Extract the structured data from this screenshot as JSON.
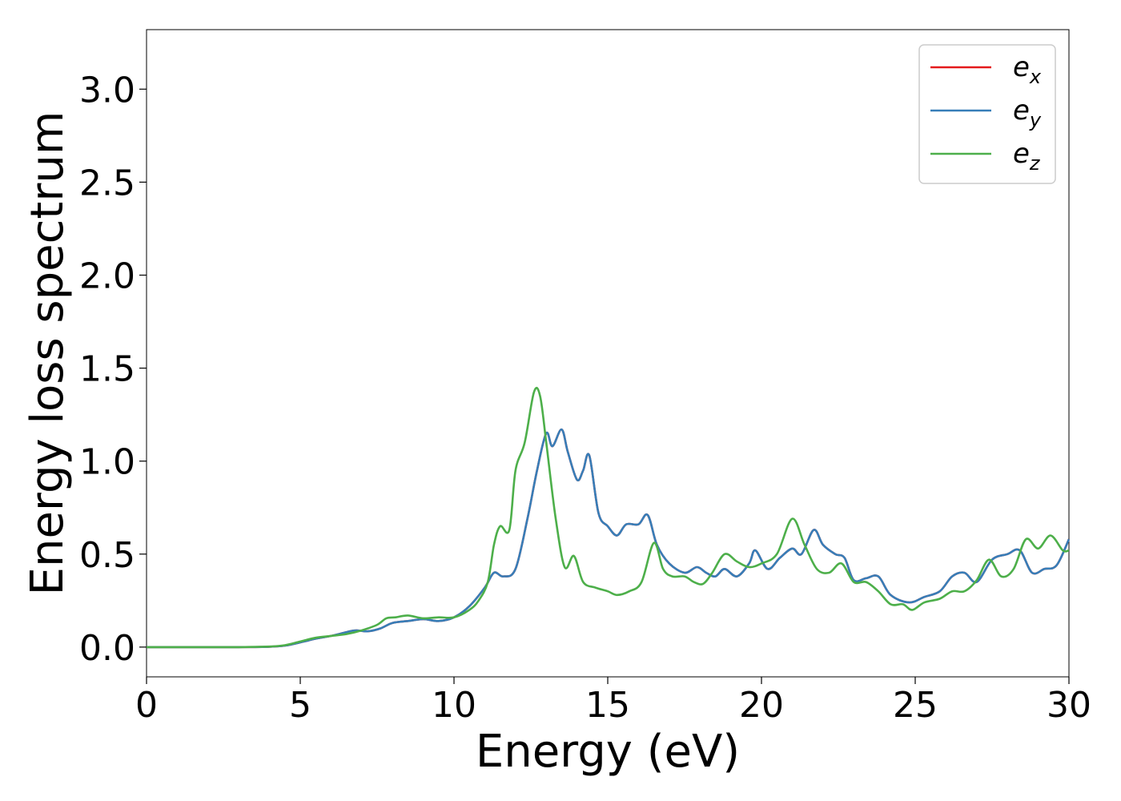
{
  "chart_data": {
    "type": "line",
    "xlabel": "Energy (eV)",
    "ylabel": "Energy loss spectrum",
    "xlim": [
      0,
      30
    ],
    "ylim": [
      -0.16,
      3.32
    ],
    "xticks": [
      0,
      5,
      10,
      15,
      20,
      25,
      30
    ],
    "xtick_labels": [
      "0",
      "5",
      "10",
      "15",
      "20",
      "25",
      "30"
    ],
    "yticks": [
      0.0,
      0.5,
      1.0,
      1.5,
      2.0,
      2.5,
      3.0
    ],
    "ytick_labels": [
      "0.0",
      "0.5",
      "1.0",
      "1.5",
      "2.0",
      "2.5",
      "3.0"
    ],
    "grid": false,
    "legend_position": "top-right",
    "series": [
      {
        "name": "ex",
        "legend_main": "e",
        "legend_sub": "x",
        "color": "#e41a1c",
        "x": [
          0,
          1,
          2,
          3,
          4,
          4.5,
          5,
          5.5,
          6,
          6.5,
          6.8,
          7.2,
          7.6,
          8,
          8.5,
          9,
          9.5,
          10,
          10.5,
          11,
          11.3,
          11.6,
          12,
          12.4,
          12.7,
          13.0,
          13.2,
          13.5,
          13.7,
          14.0,
          14.2,
          14.4,
          14.7,
          15.0,
          15.3,
          15.6,
          16.0,
          16.3,
          16.6,
          17.0,
          17.5,
          17.9,
          18.2,
          18.5,
          18.8,
          19.2,
          19.6,
          19.8,
          20.2,
          20.6,
          21.0,
          21.3,
          21.7,
          22.0,
          22.4,
          22.7,
          23.0,
          23.4,
          23.8,
          24.2,
          24.8,
          25.3,
          25.8,
          26.2,
          26.6,
          27.0,
          27.5,
          28.0,
          28.4,
          28.8,
          29.2,
          29.6,
          30.0
        ],
        "y": [
          0,
          0,
          0,
          0,
          0.002,
          0.008,
          0.025,
          0.045,
          0.06,
          0.08,
          0.09,
          0.085,
          0.1,
          0.13,
          0.14,
          0.15,
          0.14,
          0.16,
          0.22,
          0.32,
          0.4,
          0.38,
          0.42,
          0.7,
          0.95,
          1.15,
          1.08,
          1.17,
          1.05,
          0.9,
          0.95,
          1.03,
          0.72,
          0.65,
          0.6,
          0.66,
          0.66,
          0.71,
          0.55,
          0.45,
          0.4,
          0.43,
          0.4,
          0.38,
          0.42,
          0.38,
          0.45,
          0.52,
          0.42,
          0.48,
          0.53,
          0.5,
          0.63,
          0.55,
          0.5,
          0.48,
          0.36,
          0.37,
          0.38,
          0.28,
          0.24,
          0.27,
          0.3,
          0.38,
          0.4,
          0.35,
          0.47,
          0.5,
          0.52,
          0.4,
          0.42,
          0.44,
          0.58
        ]
      },
      {
        "name": "ey",
        "legend_main": "e",
        "legend_sub": "y",
        "color": "#377eb8",
        "x": [
          0,
          1,
          2,
          3,
          4,
          4.5,
          5,
          5.5,
          6,
          6.5,
          6.8,
          7.2,
          7.6,
          8,
          8.5,
          9,
          9.5,
          10,
          10.5,
          11,
          11.3,
          11.6,
          12,
          12.4,
          12.7,
          13.0,
          13.2,
          13.5,
          13.7,
          14.0,
          14.2,
          14.4,
          14.7,
          15.0,
          15.3,
          15.6,
          16.0,
          16.3,
          16.6,
          17.0,
          17.5,
          17.9,
          18.2,
          18.5,
          18.8,
          19.2,
          19.6,
          19.8,
          20.2,
          20.6,
          21.0,
          21.3,
          21.7,
          22.0,
          22.4,
          22.7,
          23.0,
          23.4,
          23.8,
          24.2,
          24.8,
          25.3,
          25.8,
          26.2,
          26.6,
          27.0,
          27.5,
          28.0,
          28.4,
          28.8,
          29.2,
          29.6,
          30.0
        ],
        "y": [
          0,
          0,
          0,
          0,
          0.002,
          0.008,
          0.025,
          0.045,
          0.06,
          0.08,
          0.09,
          0.085,
          0.1,
          0.13,
          0.14,
          0.15,
          0.14,
          0.16,
          0.22,
          0.32,
          0.4,
          0.38,
          0.42,
          0.7,
          0.95,
          1.15,
          1.08,
          1.17,
          1.05,
          0.9,
          0.95,
          1.03,
          0.72,
          0.65,
          0.6,
          0.66,
          0.66,
          0.71,
          0.55,
          0.45,
          0.4,
          0.43,
          0.4,
          0.38,
          0.42,
          0.38,
          0.45,
          0.52,
          0.42,
          0.48,
          0.53,
          0.5,
          0.63,
          0.55,
          0.5,
          0.48,
          0.36,
          0.37,
          0.38,
          0.28,
          0.24,
          0.27,
          0.3,
          0.38,
          0.4,
          0.35,
          0.47,
          0.5,
          0.52,
          0.4,
          0.42,
          0.44,
          0.58
        ]
      },
      {
        "name": "ez",
        "legend_main": "e",
        "legend_sub": "z",
        "color": "#4daf4a",
        "x": [
          0,
          1,
          2,
          3,
          4,
          4.5,
          5,
          5.5,
          6,
          6.5,
          7,
          7.5,
          7.8,
          8.1,
          8.5,
          9,
          9.5,
          10,
          10.5,
          10.8,
          11.1,
          11.3,
          11.5,
          11.8,
          12.0,
          12.3,
          12.6,
          12.8,
          13.0,
          13.3,
          13.6,
          13.9,
          14.2,
          14.6,
          15.0,
          15.3,
          15.7,
          16.1,
          16.5,
          16.8,
          17.1,
          17.5,
          17.8,
          18.1,
          18.4,
          18.8,
          19.2,
          19.6,
          20.0,
          20.5,
          21.0,
          21.4,
          21.8,
          22.2,
          22.6,
          23.0,
          23.4,
          23.8,
          24.2,
          24.6,
          24.9,
          25.3,
          25.8,
          26.2,
          26.6,
          27.0,
          27.4,
          27.8,
          28.2,
          28.6,
          29.0,
          29.4,
          29.8,
          30.0
        ],
        "y": [
          0,
          0,
          0,
          0,
          0.003,
          0.01,
          0.03,
          0.05,
          0.06,
          0.07,
          0.09,
          0.12,
          0.155,
          0.16,
          0.17,
          0.155,
          0.16,
          0.16,
          0.2,
          0.25,
          0.35,
          0.55,
          0.65,
          0.63,
          0.95,
          1.1,
          1.37,
          1.35,
          1.1,
          0.7,
          0.43,
          0.49,
          0.35,
          0.32,
          0.3,
          0.28,
          0.3,
          0.35,
          0.56,
          0.42,
          0.38,
          0.38,
          0.35,
          0.34,
          0.4,
          0.5,
          0.46,
          0.43,
          0.45,
          0.5,
          0.69,
          0.55,
          0.42,
          0.4,
          0.45,
          0.35,
          0.35,
          0.3,
          0.23,
          0.23,
          0.2,
          0.24,
          0.26,
          0.3,
          0.3,
          0.36,
          0.47,
          0.38,
          0.42,
          0.58,
          0.53,
          0.6,
          0.52,
          0.52
        ]
      }
    ]
  }
}
